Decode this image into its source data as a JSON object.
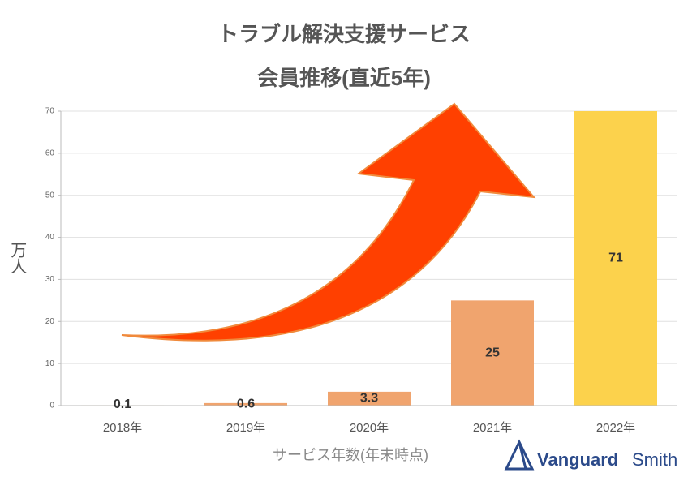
{
  "chart_data": {
    "type": "bar",
    "title": [
      "トラブル解決支援サービス",
      "会員推移(直近5年)"
    ],
    "categories": [
      "2018年",
      "2019年",
      "2020年",
      "2021年",
      "2022年"
    ],
    "values": [
      0.1,
      0.6,
      3.3,
      25,
      71
    ],
    "colors": [
      "#f0a46e",
      "#f0a46e",
      "#f0a46e",
      "#f0a46e",
      "#fcd24c"
    ],
    "ylim": [
      0,
      70
    ],
    "yticks": [
      0,
      10,
      20,
      30,
      40,
      50,
      60,
      70
    ],
    "grid": true,
    "y_label": "万人",
    "x_label": "サービス年数(年末時点)",
    "logo": [
      "Vanguard",
      "Smith"
    ]
  }
}
